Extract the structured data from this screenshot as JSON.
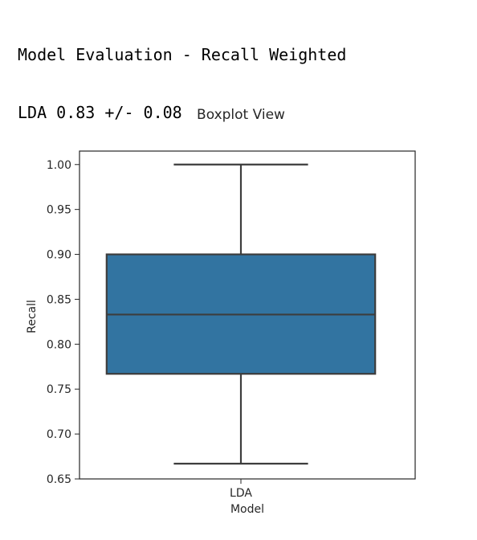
{
  "console": {
    "line1": "Model Evaluation - Recall Weighted",
    "line2": "LDA 0.83 +/- 0.08"
  },
  "chart_data": {
    "type": "boxplot",
    "title": "Boxplot View",
    "xlabel": "Model",
    "ylabel": "Recall",
    "ylim": [
      0.65,
      1.015
    ],
    "yticks": [
      "0.65",
      "0.70",
      "0.75",
      "0.80",
      "0.85",
      "0.90",
      "0.95",
      "1.00"
    ],
    "ytick_values": [
      0.65,
      0.7,
      0.75,
      0.8,
      0.85,
      0.9,
      0.95,
      1.0
    ],
    "categories": [
      "LDA"
    ],
    "boxes": [
      {
        "category": "LDA",
        "min": 0.667,
        "q1": 0.767,
        "median": 0.833,
        "q3": 0.9,
        "max": 1.0
      }
    ],
    "grid": false,
    "colors": {
      "box_fill": "#3274a1",
      "box_edge": "#3d3d3d",
      "axes": "#262626"
    }
  }
}
